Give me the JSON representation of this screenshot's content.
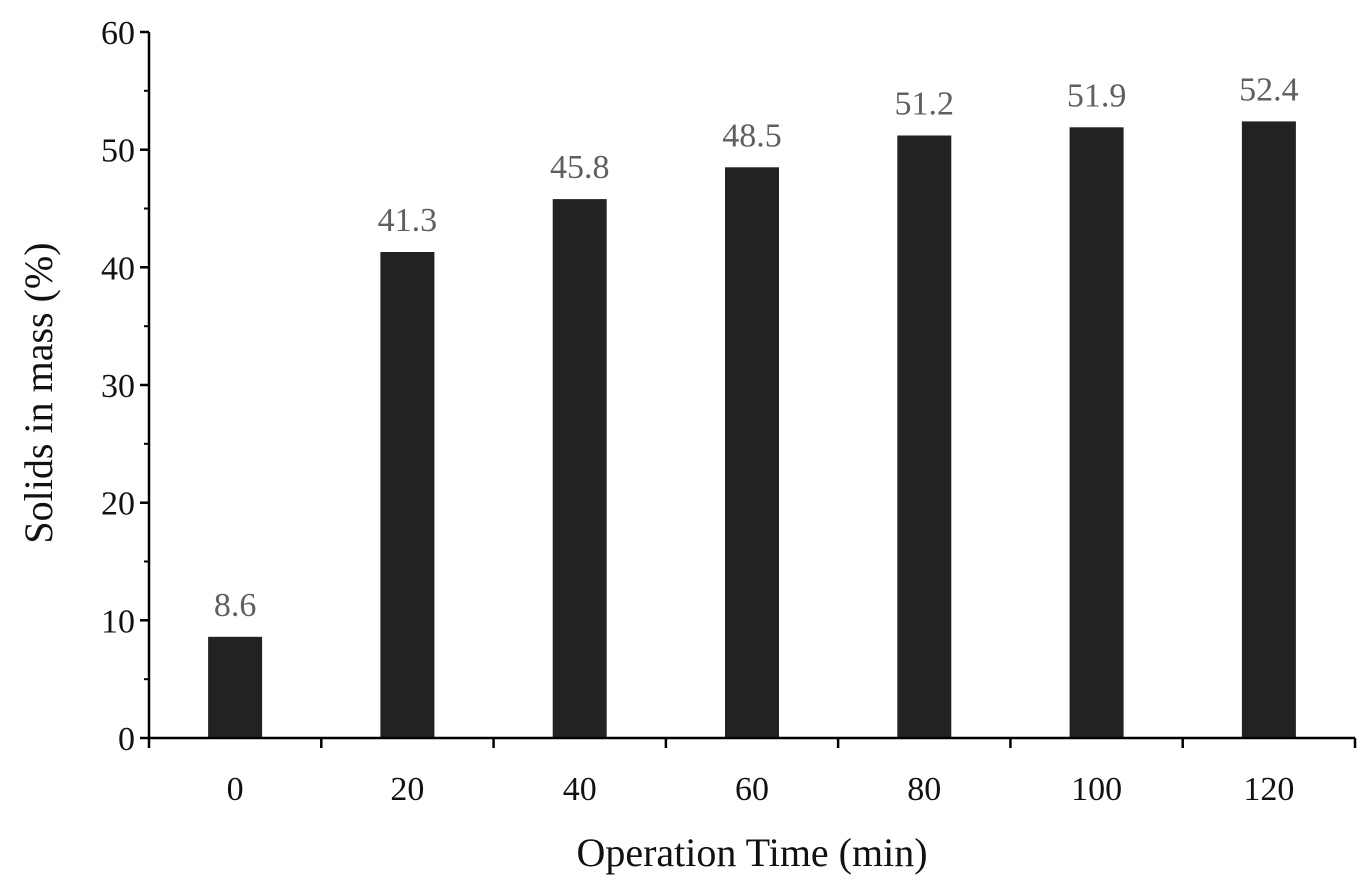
{
  "chart_data": {
    "type": "bar",
    "title": "",
    "xlabel": "Operation Time (min)",
    "ylabel": "Solids in mass (%)",
    "categories": [
      "0",
      "20",
      "40",
      "60",
      "80",
      "100",
      "120"
    ],
    "values": [
      8.6,
      41.3,
      45.8,
      48.5,
      51.2,
      51.9,
      52.4
    ],
    "value_labels": [
      "8.6",
      "41.3",
      "45.8",
      "48.5",
      "51.2",
      "51.9",
      "52.4"
    ],
    "ylim": [
      0,
      60
    ],
    "yticks": [
      "0",
      "10",
      "20",
      "30",
      "40",
      "50",
      "60"
    ],
    "ytick_values": [
      0,
      10,
      20,
      30,
      40,
      50,
      60
    ],
    "minor_ytick_step": 5,
    "grid": false,
    "legend": "none",
    "bar_color": "#222222",
    "axis_color": "#000000",
    "data_label_color": "#5f5f5f"
  }
}
